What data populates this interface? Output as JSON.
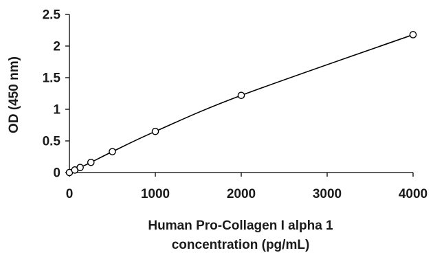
{
  "chart_data": {
    "type": "scatter",
    "title": "",
    "xlabel_lines": [
      "Human Pro-Collagen I alpha 1",
      "concentration (pg/mL)"
    ],
    "ylabel": "OD (450 nm)",
    "xlim": [
      0,
      4000
    ],
    "ylim": [
      0,
      2.5
    ],
    "x_ticks": [
      0,
      1000,
      2000,
      3000,
      4000
    ],
    "y_ticks": [
      0,
      0.5,
      1,
      1.5,
      2,
      2.5
    ],
    "x_tick_labels": [
      "0",
      "1000",
      "2000",
      "3000",
      "4000"
    ],
    "y_tick_labels": [
      "0",
      "0.5",
      "1",
      "1.5",
      "2",
      "2.5"
    ],
    "grid": false,
    "legend": "none",
    "series": [
      {
        "points_x": [
          0,
          62.5,
          125,
          250,
          500,
          1000,
          2000,
          4000
        ],
        "points_y": [
          0.0,
          0.04,
          0.08,
          0.16,
          0.33,
          0.65,
          1.22,
          2.18
        ],
        "fit": "smooth curve through points"
      }
    ]
  }
}
